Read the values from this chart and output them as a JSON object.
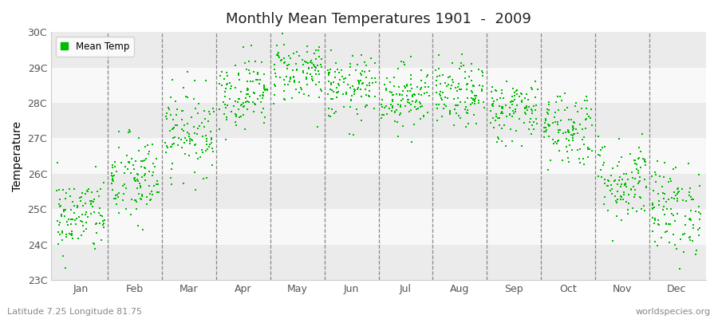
{
  "title": "Monthly Mean Temperatures 1901  -  2009",
  "ylabel": "Temperature",
  "bottom_left_text": "Latitude 7.25 Longitude 81.75",
  "bottom_right_text": "worldspecies.org",
  "legend_label": "Mean Temp",
  "dot_color": "#00bb00",
  "background_color": "#ffffff",
  "band_colors": [
    "#ebebeb",
    "#f8f8f8"
  ],
  "y_min": 23,
  "y_max": 30,
  "y_ticks": [
    23,
    24,
    25,
    26,
    27,
    28,
    29,
    30
  ],
  "y_tick_labels": [
    "23C",
    "24C",
    "25C",
    "26C",
    "27C",
    "28C",
    "29C",
    "30C"
  ],
  "months": [
    "Jan",
    "Feb",
    "Mar",
    "Apr",
    "May",
    "Jun",
    "Jul",
    "Aug",
    "Sep",
    "Oct",
    "Nov",
    "Dec"
  ],
  "month_means": [
    24.8,
    25.8,
    27.2,
    28.3,
    28.9,
    28.4,
    28.2,
    28.2,
    27.8,
    27.3,
    25.8,
    25.0
  ],
  "month_stds": [
    0.55,
    0.65,
    0.6,
    0.5,
    0.45,
    0.45,
    0.45,
    0.45,
    0.45,
    0.55,
    0.6,
    0.65
  ],
  "n_years": 109,
  "seed": 42
}
